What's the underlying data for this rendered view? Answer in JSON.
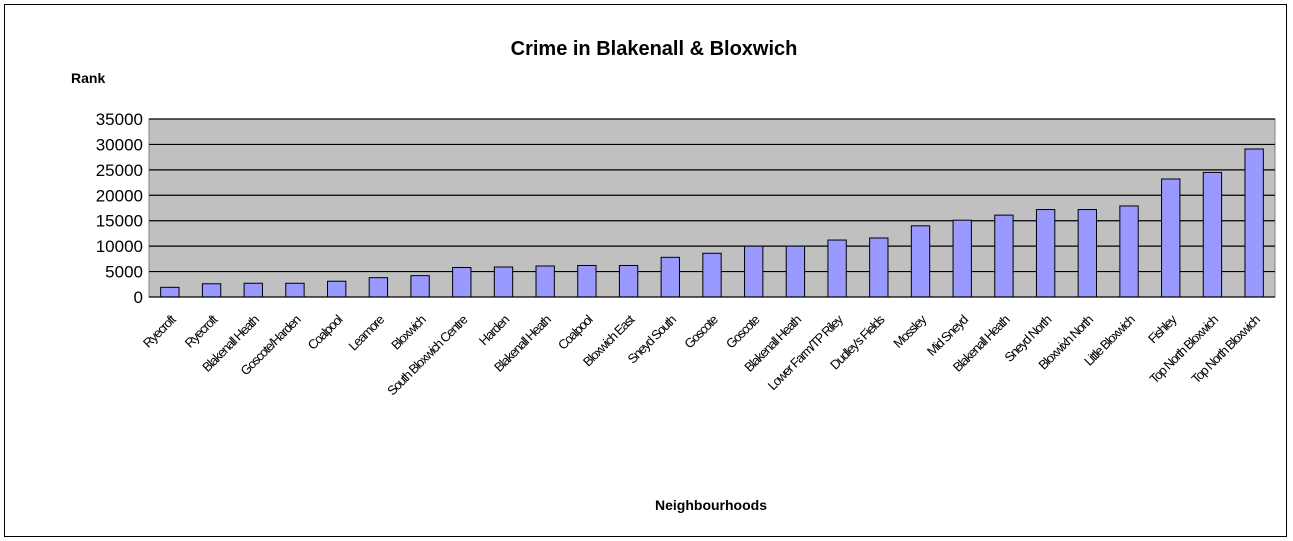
{
  "chart_data": {
    "type": "bar",
    "title": "Crime in Blakenall & Bloxwich",
    "ylabel": "Rank",
    "xlabel": "Neighbourhoods",
    "ylim": [
      0,
      35000
    ],
    "yticks": [
      0,
      5000,
      10000,
      15000,
      20000,
      25000,
      30000,
      35000
    ],
    "grid": true,
    "legend": "none",
    "colors": {
      "bar_fill": "#9999ff",
      "plot_background": "#c0c0c0",
      "bar_stroke": "#000000"
    },
    "categories": [
      "Ryecroft",
      "Ryecroft",
      "Blakenall Heath",
      "Goscote/Harden",
      "Coalpool",
      "Leamore",
      "Bloxwich",
      "South Bloxwich Centre",
      "Harden",
      "Blakenall Heath",
      "Coalpool",
      "Bloxwich East",
      "Sneyd South",
      "Goscote",
      "Goscote",
      "Blakenall Heath",
      "Lower Farm/TP Riley",
      "Dudley's Fields",
      "Mossley",
      "Mid Sneyd",
      "Blakenall Heath",
      "Sneyd North",
      "Bloxwixh North",
      "Little Bloxwich",
      "Fishley",
      "Top North Bloxwich",
      "Top North Bloxwich"
    ],
    "values": [
      1900,
      2600,
      2700,
      2700,
      3100,
      3800,
      4200,
      5800,
      5900,
      6100,
      6200,
      6200,
      7800,
      8600,
      10000,
      10000,
      11200,
      11600,
      14000,
      15100,
      16100,
      17200,
      17200,
      17900,
      23200,
      24500,
      29100
    ]
  }
}
